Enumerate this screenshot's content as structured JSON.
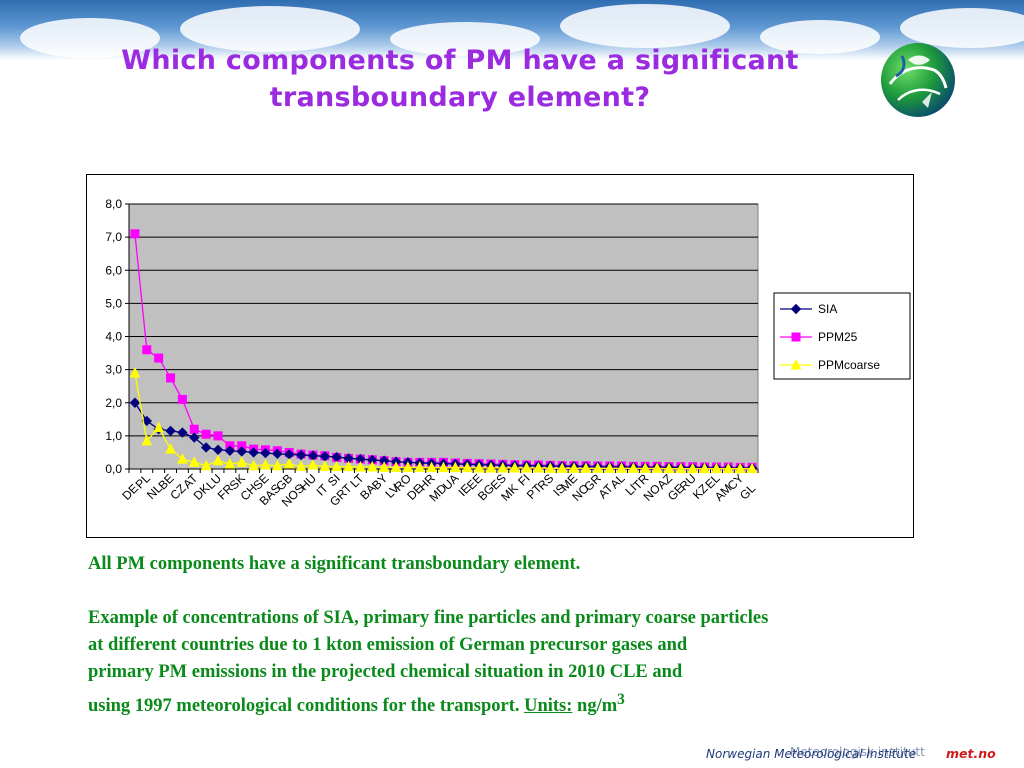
{
  "slide": {
    "title_line1": "Which components of PM have a significant",
    "title_line2": "transboundary element?",
    "paragraph1": "All PM components have a significant transboundary element.",
    "paragraph2_lines": [
      "Example of concentrations of SIA, primary fine particles and primary coarse particles",
      "at different countries due to 1 kton emission of German precursor gases and",
      "primary PM emissions in the  projected chemical situation in 2010 CLE and"
    ],
    "paragraph2_last_text": "using 1997 meteorological conditions for the transport. ",
    "units_label": "Units:",
    "units_value": " ng/m",
    "units_superscript": "3",
    "footer_institute": "Norwegian Meteorological Institute",
    "footer_overlay": "Meteorologisk institutt",
    "footer_brand": "met.no"
  },
  "colors": {
    "title": "#9a2be0",
    "body_text": "#0a8a1a",
    "plot_background": "#c0c0c0",
    "SIA": "#000080",
    "PPM25": "#ff00ff",
    "PPMcoarse": "#ffff00"
  },
  "chart_data": {
    "type": "line",
    "title": "",
    "xlabel": "",
    "ylabel": "",
    "ylim": [
      0,
      8
    ],
    "y_ticks": [
      "0,0",
      "1,0",
      "2,0",
      "3,0",
      "4,0",
      "5,0",
      "6,0",
      "7,0",
      "8,0"
    ],
    "grid": "horizontal",
    "legend_position": "right",
    "categories": [
      "DE",
      "PL",
      "NL",
      "BE",
      "CZ",
      "AT",
      "DK",
      "LU",
      "FR",
      "CH",
      "SK",
      "SE",
      "BAS",
      "GB",
      "NOS",
      "HU",
      "IT",
      "GRT",
      "SI",
      "BA",
      "LT",
      "BY",
      "LV",
      "DE",
      "RO",
      "HR",
      "UA",
      "MD",
      "EE",
      "IE",
      "BG",
      "ES",
      "FI",
      "RS",
      "ME",
      "MK",
      "PT",
      "GR",
      "IS",
      "NO",
      "AL",
      "AT",
      "TR",
      "LI",
      "NO",
      "AZ",
      "GE",
      "RU",
      "KZ",
      "AM",
      "EL",
      "CY",
      "GL"
    ],
    "x_tick_labels_lower": [
      "DE",
      "NL",
      "CZ",
      "DK",
      "FR",
      "CH",
      "BAS",
      "NOS",
      "IT",
      "GRT",
      "BA",
      "LV",
      "DE",
      "MD",
      "IE",
      "BG",
      "MK",
      "PT",
      "IS",
      "NO",
      "AT",
      "LI",
      "NO",
      "GE",
      "KZ",
      "AM",
      "GL"
    ],
    "x_tick_labels_upper": [
      "PL",
      "BE",
      "AT",
      "LU",
      "SK",
      "SE",
      "GB",
      "HU",
      "SI",
      "LT",
      "BY",
      "RO",
      "HR",
      "UA",
      "EE",
      "ES",
      "FI",
      "RS",
      "ME",
      "GR",
      "AL",
      "TR",
      "AZ",
      "RU",
      "EL",
      "CY"
    ],
    "series": [
      {
        "name": "SIA",
        "marker": "diamond",
        "values": [
          2.0,
          1.45,
          1.2,
          1.15,
          1.1,
          0.95,
          0.65,
          0.58,
          0.55,
          0.53,
          0.5,
          0.48,
          0.46,
          0.44,
          0.42,
          0.4,
          0.38,
          0.36,
          0.32,
          0.3,
          0.27,
          0.25,
          0.22,
          0.2,
          0.18,
          0.17,
          0.16,
          0.15,
          0.14,
          0.13,
          0.12,
          0.11,
          0.1,
          0.1,
          0.09,
          0.09,
          0.08,
          0.08,
          0.07,
          0.07,
          0.06,
          0.06,
          0.06,
          0.05,
          0.05,
          0.05,
          0.04,
          0.04,
          0.04,
          0.03,
          0.03,
          0.03,
          0.03
        ]
      },
      {
        "name": "PPM25",
        "marker": "square",
        "values": [
          7.1,
          3.6,
          3.35,
          2.75,
          2.1,
          1.2,
          1.05,
          1.0,
          0.7,
          0.7,
          0.6,
          0.58,
          0.55,
          0.5,
          0.45,
          0.42,
          0.4,
          0.35,
          0.32,
          0.3,
          0.28,
          0.25,
          0.22,
          0.2,
          0.2,
          0.2,
          0.2,
          0.18,
          0.17,
          0.16,
          0.15,
          0.14,
          0.13,
          0.12,
          0.12,
          0.11,
          0.1,
          0.1,
          0.1,
          0.09,
          0.09,
          0.09,
          0.08,
          0.08,
          0.08,
          0.07,
          0.07,
          0.07,
          0.06,
          0.06,
          0.06,
          0.05,
          0.05
        ]
      },
      {
        "name": "PPMcoarse",
        "marker": "triangle",
        "values": [
          2.9,
          0.85,
          1.25,
          0.6,
          0.3,
          0.2,
          0.1,
          0.25,
          0.15,
          0.2,
          0.1,
          0.12,
          0.1,
          0.15,
          0.08,
          0.12,
          0.08,
          0.07,
          0.07,
          0.06,
          0.06,
          0.05,
          0.05,
          0.05,
          0.05,
          0.04,
          0.04,
          0.04,
          0.04,
          0.03,
          0.03,
          0.03,
          0.03,
          0.03,
          0.03,
          0.02,
          0.02,
          0.02,
          0.02,
          0.02,
          0.02,
          0.02,
          0.02,
          0.02,
          0.02,
          0.01,
          0.01,
          0.01,
          0.01,
          0.01,
          0.01,
          0.01,
          0.01
        ]
      }
    ]
  }
}
